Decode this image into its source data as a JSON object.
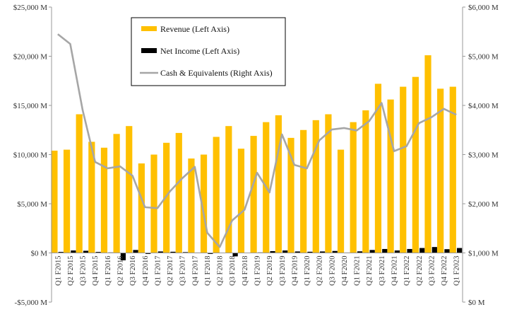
{
  "chart_data": {
    "type": "bar",
    "categories": [
      "Q1 F2015",
      "Q2 F2015",
      "Q3 F2015",
      "Q4 F2015",
      "Q1 F2016",
      "Q2 F2016",
      "Q3 F2016",
      "Q4 F2016",
      "Q1 F2017",
      "Q2 F2017",
      "Q3 F2017",
      "Q4 F2017",
      "Q1 F2018",
      "Q2 F2018",
      "Q3 F2018",
      "Q4 F2018",
      "Q1 F2019",
      "Q2 F2019",
      "Q3 F2019",
      "Q4 F2019",
      "Q1 F2020",
      "Q2 F2020",
      "Q3 F2020",
      "Q4 F2020",
      "Q1 F2021",
      "Q2 F2021",
      "Q3 F2021",
      "Q4 F2021",
      "Q1 F2022",
      "Q2 F2022",
      "Q3 F2022",
      "Q4 F2022",
      "Q1 F2023"
    ],
    "series": [
      {
        "name": "Revenue (Left Axis)",
        "type": "bar",
        "axis": "left",
        "color": "#FFC000",
        "values": [
          10400,
          10500,
          14100,
          11300,
          10700,
          12100,
          12900,
          9100,
          10000,
          11200,
          12200,
          9600,
          10000,
          11800,
          12900,
          10600,
          11900,
          13300,
          14000,
          11700,
          12500,
          13500,
          14100,
          10500,
          13300,
          14500,
          17200,
          15600,
          16900,
          17900,
          20100,
          16700,
          16900
        ]
      },
      {
        "name": "Net Income (Left Axis)",
        "type": "bar",
        "axis": "left",
        "color": "#000000",
        "values": [
          100,
          250,
          220,
          100,
          50,
          -750,
          300,
          -100,
          150,
          120,
          80,
          40,
          -100,
          10,
          -350,
          30,
          50,
          180,
          250,
          150,
          120,
          150,
          200,
          40,
          160,
          300,
          400,
          250,
          400,
          500,
          600,
          380,
          500
        ]
      },
      {
        "name": "Cash & Equivalents (Right Axis)",
        "type": "line",
        "axis": "right",
        "color": "#A6A6A6",
        "values": [
          5450,
          5250,
          3900,
          2850,
          2720,
          2760,
          2570,
          1930,
          1910,
          2250,
          2520,
          2750,
          1410,
          1120,
          1660,
          1880,
          2630,
          2230,
          3410,
          2790,
          2720,
          3290,
          3510,
          3540,
          3490,
          3680,
          4050,
          3070,
          3170,
          3640,
          3760,
          3930,
          3810
        ]
      }
    ],
    "y_left": {
      "min": -5000,
      "max": 25000,
      "step": 5000,
      "format_prefix": "$",
      "format_suffix": " M"
    },
    "y_right": {
      "min": 0,
      "max": 6000,
      "step": 1000,
      "format_prefix": "$",
      "format_suffix": " M"
    },
    "grid": false,
    "legend": {
      "placement": "top-left-inside",
      "entries": [
        {
          "label": "Revenue (Left Axis)",
          "swatch": "bar",
          "color": "#FFC000"
        },
        {
          "label": "Net Income (Left Axis)",
          "swatch": "bar",
          "color": "#000000"
        },
        {
          "label": "Cash & Equivalents (Right Axis)",
          "swatch": "line",
          "color": "#A6A6A6"
        }
      ]
    }
  }
}
